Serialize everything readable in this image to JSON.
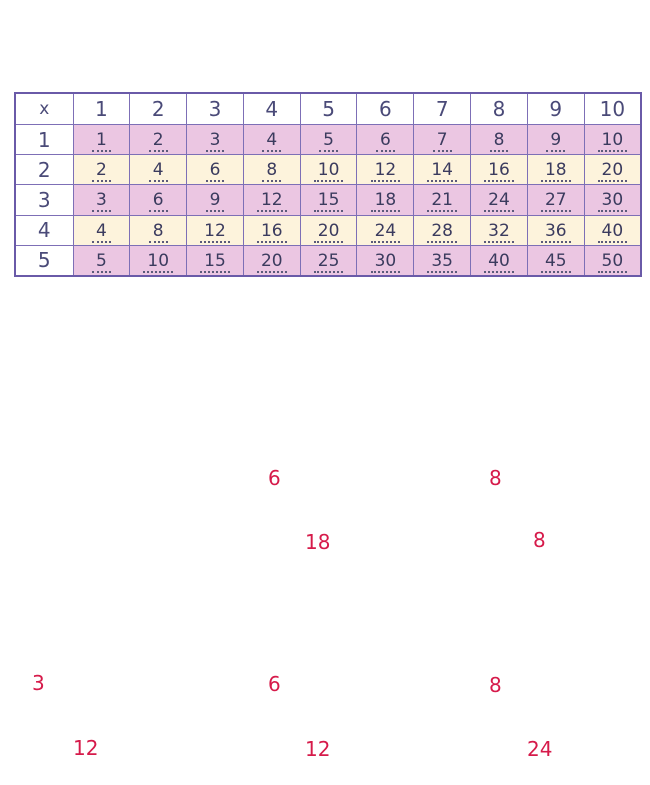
{
  "table": {
    "corner": "x",
    "columns": [
      "1",
      "2",
      "3",
      "4",
      "5",
      "6",
      "7",
      "8",
      "9",
      "10"
    ],
    "rows": [
      {
        "label": "1",
        "values": [
          "1",
          "2",
          "3",
          "4",
          "5",
          "6",
          "7",
          "8",
          "9",
          "10"
        ]
      },
      {
        "label": "2",
        "values": [
          "2",
          "4",
          "6",
          "8",
          "10",
          "12",
          "14",
          "16",
          "18",
          "20"
        ]
      },
      {
        "label": "3",
        "values": [
          "3",
          "6",
          "9",
          "12",
          "15",
          "18",
          "21",
          "24",
          "27",
          "30"
        ]
      },
      {
        "label": "4",
        "values": [
          "4",
          "8",
          "12",
          "16",
          "20",
          "24",
          "28",
          "32",
          "36",
          "40"
        ]
      },
      {
        "label": "5",
        "values": [
          "5",
          "10",
          "15",
          "20",
          "25",
          "30",
          "35",
          "40",
          "45",
          "50"
        ]
      }
    ]
  },
  "answers": [
    "6",
    "8",
    "18",
    "8",
    "3",
    "6",
    "8",
    "12",
    "12",
    "24"
  ],
  "colors": {
    "border": "#6a5aa8",
    "row_purple": "#ebc6e2",
    "row_cream": "#fdf3dc",
    "answer": "#d61a4a"
  }
}
